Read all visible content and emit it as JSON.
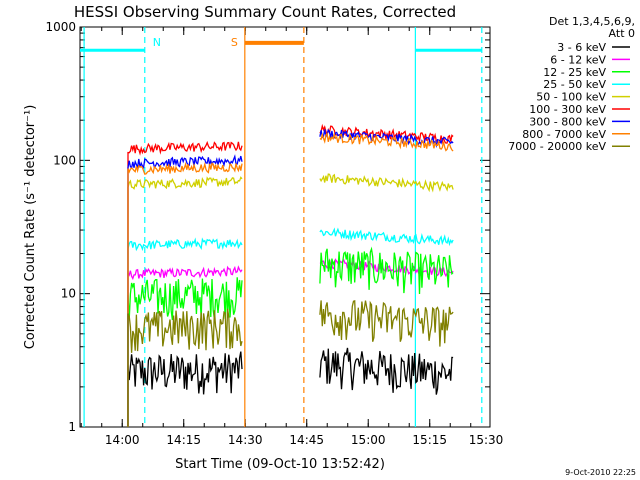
{
  "chart_data": {
    "type": "line",
    "title": "HESSI Observing Summary Count Rates, Corrected",
    "xlabel": "Start Time (09-Oct-10 13:52:42)",
    "ylabel": "Corrected Count Rate (s⁻¹ detector⁻¹)",
    "yscale": "log",
    "ylim": [
      1,
      1000
    ],
    "xlim_minutes": [
      -3,
      97
    ],
    "x_ticks": [
      {
        "label": "14:00",
        "minute": 7.3
      },
      {
        "label": "14:15",
        "minute": 22.3
      },
      {
        "label": "14:30",
        "minute": 37.3
      },
      {
        "label": "14:45",
        "minute": 52.3
      },
      {
        "label": "15:00",
        "minute": 67.3
      },
      {
        "label": "15:15",
        "minute": 82.3
      },
      {
        "label": "15:30",
        "minute": 97.3
      }
    ],
    "y_ticks": [
      {
        "label": "1",
        "value": 1
      },
      {
        "label": "10",
        "value": 10
      },
      {
        "label": "100",
        "value": 100
      },
      {
        "label": "1000",
        "value": 1000
      }
    ],
    "legend": {
      "header": [
        "Det 1,3,4,5,6,9,",
        "Att 0"
      ],
      "placement": "right"
    },
    "series": [
      {
        "name": "3 - 6 keV",
        "color": "#000000",
        "a": 2.6,
        "b": 3.0
      },
      {
        "name": "6 - 12 keV",
        "color": "#ff00ff",
        "a": 14,
        "b": 17
      },
      {
        "name": "12 - 25 keV",
        "color": "#00ff00",
        "a": 9.5,
        "b": 17
      },
      {
        "name": "25 - 50 keV",
        "color": "#00ffff",
        "a": 23,
        "b": 29
      },
      {
        "name": "50 - 100 keV",
        "color": "#d0d000",
        "a": 66,
        "b": 74
      },
      {
        "name": "100 - 300 keV",
        "color": "#ff0000",
        "a": 122,
        "b": 170
      },
      {
        "name": "300 - 800 keV",
        "color": "#0000ff",
        "a": 95,
        "b": 160
      },
      {
        "name": "800 - 7000 keV",
        "color": "#ff8000",
        "a": 85,
        "b": 150
      },
      {
        "name": "7000 - 20000 keV",
        "color": "#808000",
        "a": 5.5,
        "b": 7.0
      }
    ],
    "segments": [
      {
        "start": 8.7,
        "end": 36.5,
        "series_at_start": "a"
      },
      {
        "start": 55.5,
        "end": 88.0,
        "series_at_start": "b"
      }
    ],
    "flags": [
      {
        "label": "N",
        "color": "#00ffff",
        "level": 670,
        "spans": [
          [
            -3,
            12.8
          ],
          [
            78.8,
            95.0
          ]
        ],
        "edges": [
          12.8,
          78.8
        ],
        "dashed_edges": [
          12.8,
          95.0
        ],
        "solid_edges": [
          -2.0,
          78.8
        ]
      },
      {
        "label": "S",
        "color": "#ff8000",
        "level": 760,
        "spans": [
          [
            37.2,
            51.6
          ]
        ],
        "edges": [
          37.2,
          51.6
        ],
        "dashed_edges": [
          51.6
        ],
        "solid_edges": [
          37.2
        ]
      }
    ],
    "footer_timestamp": "9-Oct-2010 22:25"
  }
}
